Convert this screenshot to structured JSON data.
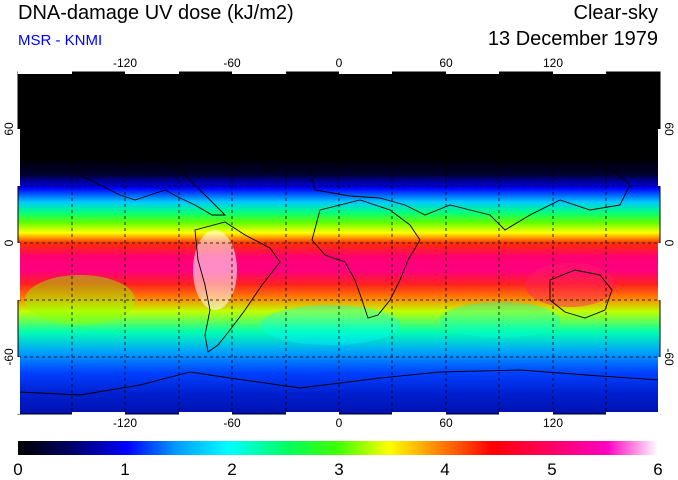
{
  "header": {
    "title": "DNA-damage UV dose (kJ/m2)",
    "subtitle": "MSR - KNMI",
    "condition": "Clear-sky",
    "date": "13 December 1979"
  },
  "map": {
    "projection": "equirectangular",
    "lon_range": [
      -180,
      180
    ],
    "lat_range": [
      -90,
      90
    ],
    "grid": true,
    "lon_ticks": [
      -120,
      -60,
      0,
      60,
      120
    ],
    "lat_ticks": [
      60,
      0,
      -60
    ],
    "lon_tick_labels": [
      "-120",
      "-60",
      "0",
      "60",
      "120"
    ],
    "lat_tick_labels": [
      "60",
      "0",
      "-60"
    ]
  },
  "colorbar": {
    "min": 0,
    "max": 6,
    "tick_values": [
      0,
      1,
      2,
      3,
      4,
      5,
      6
    ],
    "tick_labels": [
      "0",
      "1",
      "2",
      "3",
      "4",
      "5",
      "6"
    ],
    "colors": [
      "#000000",
      "#000060",
      "#0000ff",
      "#00a0ff",
      "#00ffff",
      "#00ff60",
      "#40ff00",
      "#ffff00",
      "#ff8000",
      "#ff0000",
      "#ff0060",
      "#ff00c0",
      "#ffffff"
    ]
  }
}
